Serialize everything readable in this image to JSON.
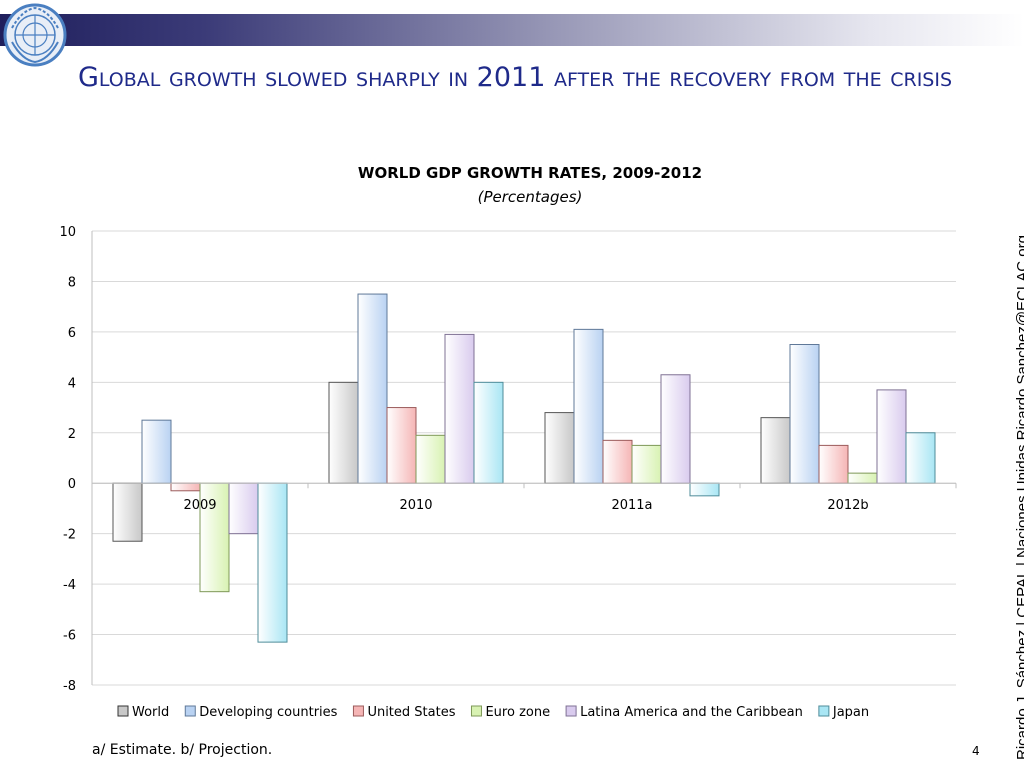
{
  "slide": {
    "title": "Global growth slowed sharply in 2011 after the recovery from the crisis",
    "footnote": "a/ Estimate. b/ Projection.",
    "page_number": "4",
    "side_credit": "Ricardo J. Sánchez | CEPAL | Naciones Unidas   Ricardo.Sanchez@ECLAC.org"
  },
  "colors": {
    "title": "#1f2a8a",
    "header_bar": "#1f1f5c",
    "logo": "#4a7fc1"
  },
  "chart_data": {
    "type": "bar",
    "title": "WORLD GDP GROWTH RATES, 2009-2012",
    "subtitle": "(Percentages)",
    "categories": [
      "2009",
      "2010",
      "2011a",
      "2012b"
    ],
    "ylim": [
      -8,
      10
    ],
    "yticks": [
      "10",
      "8",
      "6",
      "4",
      "2",
      "0",
      "-2",
      "-4",
      "-6",
      "-8"
    ],
    "ytick_values": [
      10,
      8,
      6,
      4,
      2,
      0,
      -2,
      -4,
      -6,
      -8
    ],
    "grid": true,
    "legend_position": "bottom",
    "series": [
      {
        "name": "World",
        "color": "#c8c8c8",
        "values": [
          -2.3,
          4.0,
          2.8,
          2.6
        ]
      },
      {
        "name": "Developing countries",
        "color": "#b9d2f2",
        "values": [
          2.5,
          7.5,
          6.1,
          5.5
        ]
      },
      {
        "name": "United States",
        "color": "#f5b5b5",
        "values": [
          -0.3,
          3.0,
          1.7,
          1.5
        ]
      },
      {
        "name": "Euro zone",
        "color": "#d8f2b2",
        "values": [
          -4.3,
          1.9,
          1.5,
          0.4
        ]
      },
      {
        "name": "Latina America and the Caribbean",
        "color": "#d9cbee",
        "values": [
          -2.0,
          5.9,
          4.3,
          3.7
        ]
      },
      {
        "name": "Japan",
        "color": "#a9e6f4",
        "values": [
          -6.3,
          4.0,
          -0.5,
          2.0
        ]
      }
    ]
  }
}
